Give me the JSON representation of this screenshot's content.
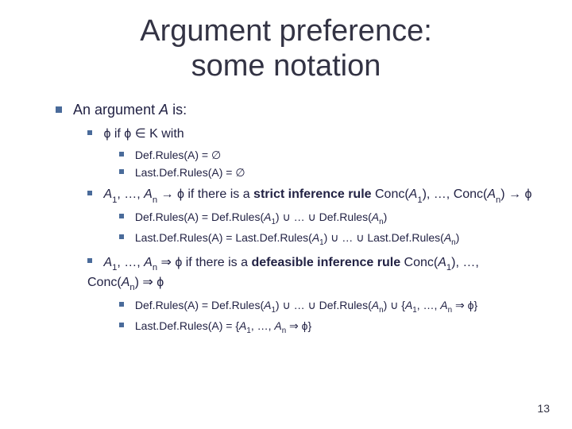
{
  "title_line1": "Argument preference:",
  "title_line2": "some notation",
  "page_number": "13",
  "colors": {
    "bullet": "#4a6b9a",
    "text": "#222244",
    "title": "#333344",
    "background": "#ffffff"
  },
  "bullets": {
    "l1": "An argument A is:",
    "b1": "ϕ if ϕ ∈ K with",
    "b1a": "Def.Rules(A) = ∅",
    "b1b": "Last.Def.Rules(A) = ∅",
    "b2_pre": "A",
    "b2_sub1": "1",
    "b2_mid1": ", …, A",
    "b2_subn": "n",
    "b2_arrow": " → ϕ if there is a ",
    "b2_strict": "strict inference rule",
    "b2_conc": " Conc(A",
    "b2_tail": "), …, Conc(A",
    "b2_end": ") → ϕ",
    "b2a_pre": "Def.Rules(A) = Def.Rules(A",
    "b2a_cup": ") ∪ … ∪ Def.Rules(A",
    "b2a_end": ")",
    "b2b_pre": "Last.Def.Rules(A) = Last.Def.Rules(A",
    "b2b_cup": ") ∪ … ∪ Last.Def.Rules(A",
    "b3_arrow2": " ⇒ ϕ if there is a ",
    "b3_def": "defeasible inference rule",
    "b3_conc": " Conc(A",
    "b3_tail": "), …, Conc(A",
    "b3_end": ") ⇒ ϕ",
    "b3a_pre": "Def.Rules(A) = Def.Rules(A",
    "b3a_cup": ") ∪ … ∪ Def.Rules(A",
    "b3a_set": ") ∪ {A",
    "b3a_mid": ", …, A",
    "b3a_end": " ⇒ ϕ}",
    "b3b_pre": "Last.Def.Rules(A) = {A",
    "b3b_mid": ", …, A",
    "b3b_end": " ⇒ ϕ}"
  }
}
